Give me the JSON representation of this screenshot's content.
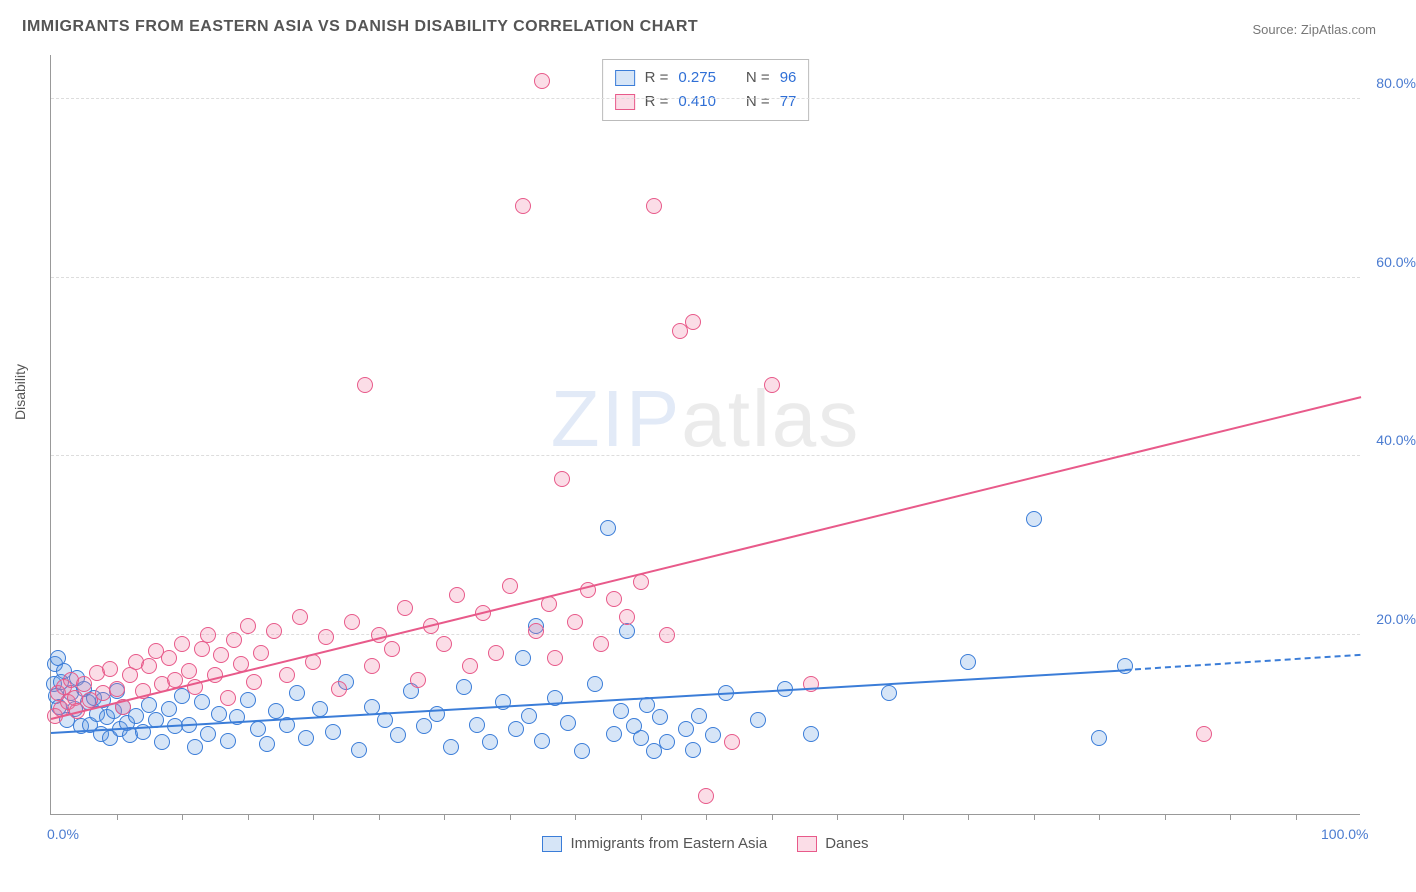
{
  "title": "IMMIGRANTS FROM EASTERN ASIA VS DANISH DISABILITY CORRELATION CHART",
  "source": "Source: ZipAtlas.com",
  "y_axis": {
    "label": "Disability"
  },
  "watermark": {
    "part1": "ZIP",
    "part2": "atlas"
  },
  "chart": {
    "type": "scatter",
    "xlim": [
      0,
      100
    ],
    "ylim": [
      0,
      85
    ],
    "x_ticks": [
      {
        "v": 0,
        "label": "0.0%"
      },
      {
        "v": 100,
        "label": "100.0%"
      }
    ],
    "x_minor_step": 5,
    "y_ticks": [
      {
        "v": 20,
        "label": "20.0%"
      },
      {
        "v": 40,
        "label": "40.0%"
      },
      {
        "v": 60,
        "label": "60.0%"
      },
      {
        "v": 80,
        "label": "80.0%"
      }
    ],
    "grid_color": "#dddddd",
    "background": "#ffffff",
    "marker_radius": 8,
    "marker_stroke_width": 1.5,
    "marker_fill_opacity": 0.25
  },
  "series": [
    {
      "key": "immigrants",
      "label": "Immigrants from Eastern Asia",
      "color": "#3b7dd8",
      "fill": "rgba(90,150,225,0.25)",
      "R": "0.275",
      "N": "96",
      "trend": {
        "x1": 0,
        "y1": 9.0,
        "x2": 82,
        "y2": 16.0,
        "dash_to_x": 100,
        "dash_to_y": 17.7
      },
      "points": [
        [
          0.2,
          14.5
        ],
        [
          0.3,
          16.8
        ],
        [
          0.4,
          13.2
        ],
        [
          0.5,
          17.5
        ],
        [
          0.6,
          12.0
        ],
        [
          0.8,
          14.8
        ],
        [
          1.0,
          16.0
        ],
        [
          1.2,
          10.5
        ],
        [
          1.5,
          13.5
        ],
        [
          1.8,
          11.8
        ],
        [
          2.0,
          15.2
        ],
        [
          2.3,
          9.8
        ],
        [
          2.5,
          14.0
        ],
        [
          2.8,
          12.5
        ],
        [
          3.0,
          10.0
        ],
        [
          3.3,
          13.0
        ],
        [
          3.5,
          11.2
        ],
        [
          3.8,
          9.0
        ],
        [
          4.0,
          12.8
        ],
        [
          4.3,
          10.8
        ],
        [
          4.5,
          8.5
        ],
        [
          4.8,
          11.5
        ],
        [
          5.0,
          13.8
        ],
        [
          5.3,
          9.5
        ],
        [
          5.5,
          12.0
        ],
        [
          5.8,
          10.2
        ],
        [
          6.0,
          8.8
        ],
        [
          6.5,
          11.0
        ],
        [
          7.0,
          9.2
        ],
        [
          7.5,
          12.2
        ],
        [
          8.0,
          10.5
        ],
        [
          8.5,
          8.0
        ],
        [
          9.0,
          11.8
        ],
        [
          9.5,
          9.8
        ],
        [
          10.0,
          13.2
        ],
        [
          10.5,
          10.0
        ],
        [
          11.0,
          7.5
        ],
        [
          11.5,
          12.5
        ],
        [
          12.0,
          9.0
        ],
        [
          12.8,
          11.2
        ],
        [
          13.5,
          8.2
        ],
        [
          14.2,
          10.8
        ],
        [
          15.0,
          12.8
        ],
        [
          15.8,
          9.5
        ],
        [
          16.5,
          7.8
        ],
        [
          17.2,
          11.5
        ],
        [
          18.0,
          10.0
        ],
        [
          18.8,
          13.5
        ],
        [
          19.5,
          8.5
        ],
        [
          20.5,
          11.8
        ],
        [
          21.5,
          9.2
        ],
        [
          22.5,
          14.8
        ],
        [
          23.5,
          7.2
        ],
        [
          24.5,
          12.0
        ],
        [
          25.5,
          10.5
        ],
        [
          26.5,
          8.8
        ],
        [
          27.5,
          13.8
        ],
        [
          28.5,
          9.8
        ],
        [
          29.5,
          11.2
        ],
        [
          30.5,
          7.5
        ],
        [
          31.5,
          14.2
        ],
        [
          32.5,
          10.0
        ],
        [
          33.5,
          8.0
        ],
        [
          34.5,
          12.5
        ],
        [
          35.5,
          9.5
        ],
        [
          36.0,
          17.5
        ],
        [
          36.5,
          11.0
        ],
        [
          37.0,
          21.0
        ],
        [
          37.5,
          8.2
        ],
        [
          38.5,
          13.0
        ],
        [
          39.5,
          10.2
        ],
        [
          40.5,
          7.0
        ],
        [
          41.5,
          14.5
        ],
        [
          42.5,
          32.0
        ],
        [
          43.0,
          9.0
        ],
        [
          43.5,
          11.5
        ],
        [
          44.0,
          20.5
        ],
        [
          44.5,
          9.8
        ],
        [
          45.0,
          8.5
        ],
        [
          45.5,
          12.2
        ],
        [
          46.0,
          7.0
        ],
        [
          46.5,
          10.8
        ],
        [
          47.0,
          8.0
        ],
        [
          48.5,
          9.5
        ],
        [
          49.0,
          7.2
        ],
        [
          49.5,
          11.0
        ],
        [
          50.5,
          8.8
        ],
        [
          51.5,
          13.5
        ],
        [
          54.0,
          10.5
        ],
        [
          56.0,
          14.0
        ],
        [
          58.0,
          9.0
        ],
        [
          64.0,
          13.5
        ],
        [
          70.0,
          17.0
        ],
        [
          75.0,
          33.0
        ],
        [
          80.0,
          8.5
        ],
        [
          82.0,
          16.5
        ]
      ]
    },
    {
      "key": "danes",
      "label": "Danes",
      "color": "#e85a8a",
      "fill": "rgba(240,120,160,0.25)",
      "R": "0.410",
      "N": "77",
      "trend": {
        "x1": 0,
        "y1": 10.5,
        "x2": 100,
        "y2": 46.5
      },
      "points": [
        [
          0.3,
          11.0
        ],
        [
          0.5,
          13.5
        ],
        [
          0.8,
          11.8
        ],
        [
          1.0,
          14.2
        ],
        [
          1.3,
          12.5
        ],
        [
          1.5,
          15.0
        ],
        [
          1.8,
          13.0
        ],
        [
          2.0,
          11.5
        ],
        [
          2.5,
          14.5
        ],
        [
          3.0,
          12.8
        ],
        [
          3.5,
          15.8
        ],
        [
          4.0,
          13.5
        ],
        [
          4.5,
          16.2
        ],
        [
          5.0,
          14.0
        ],
        [
          5.5,
          12.0
        ],
        [
          6.0,
          15.5
        ],
        [
          6.5,
          17.0
        ],
        [
          7.0,
          13.8
        ],
        [
          7.5,
          16.5
        ],
        [
          8.0,
          18.2
        ],
        [
          8.5,
          14.5
        ],
        [
          9.0,
          17.5
        ],
        [
          9.5,
          15.0
        ],
        [
          10.0,
          19.0
        ],
        [
          10.5,
          16.0
        ],
        [
          11.0,
          14.2
        ],
        [
          11.5,
          18.5
        ],
        [
          12.0,
          20.0
        ],
        [
          12.5,
          15.5
        ],
        [
          13.0,
          17.8
        ],
        [
          13.5,
          13.0
        ],
        [
          14.0,
          19.5
        ],
        [
          14.5,
          16.8
        ],
        [
          15.0,
          21.0
        ],
        [
          15.5,
          14.8
        ],
        [
          16.0,
          18.0
        ],
        [
          17.0,
          20.5
        ],
        [
          18.0,
          15.5
        ],
        [
          19.0,
          22.0
        ],
        [
          20.0,
          17.0
        ],
        [
          21.0,
          19.8
        ],
        [
          22.0,
          14.0
        ],
        [
          23.0,
          21.5
        ],
        [
          24.0,
          48.0
        ],
        [
          24.5,
          16.5
        ],
        [
          25.0,
          20.0
        ],
        [
          26.0,
          18.5
        ],
        [
          27.0,
          23.0
        ],
        [
          28.0,
          15.0
        ],
        [
          29.0,
          21.0
        ],
        [
          30.0,
          19.0
        ],
        [
          31.0,
          24.5
        ],
        [
          32.0,
          16.5
        ],
        [
          33.0,
          22.5
        ],
        [
          34.0,
          18.0
        ],
        [
          35.0,
          25.5
        ],
        [
          36.0,
          68.0
        ],
        [
          37.0,
          20.5
        ],
        [
          37.5,
          82.0
        ],
        [
          38.0,
          23.5
        ],
        [
          38.5,
          17.5
        ],
        [
          39.0,
          37.5
        ],
        [
          40.0,
          21.5
        ],
        [
          41.0,
          25.0
        ],
        [
          42.0,
          19.0
        ],
        [
          43.0,
          24.0
        ],
        [
          44.0,
          22.0
        ],
        [
          45.0,
          26.0
        ],
        [
          46.0,
          68.0
        ],
        [
          47.0,
          20.0
        ],
        [
          48.0,
          54.0
        ],
        [
          49.0,
          55.0
        ],
        [
          50.0,
          2.0
        ],
        [
          52.0,
          8.0
        ],
        [
          55.0,
          48.0
        ],
        [
          58.0,
          14.5
        ],
        [
          88.0,
          9.0
        ]
      ]
    }
  ],
  "text": {
    "R_label": "R =",
    "N_label": "N ="
  }
}
